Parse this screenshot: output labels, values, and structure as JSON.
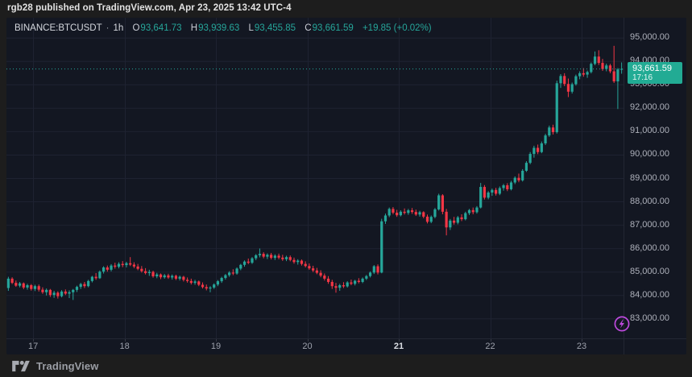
{
  "attribution": {
    "text": "rgb28 published on TradingView.com, Apr 23, 2025 13:42 UTC-4"
  },
  "footer": {
    "brand": "TradingView"
  },
  "legend": {
    "symbol": "BINANCE:BTCUSDT",
    "separator": "·",
    "interval": "1h",
    "open_label": "O",
    "open": "93,641.73",
    "high_label": "H",
    "high": "93,939.63",
    "low_label": "L",
    "low": "93,455.85",
    "close_label": "C",
    "close": "93,661.59",
    "change": "+19.85 (+0.02%)"
  },
  "price_tag": {
    "price": "93,661.59",
    "countdown": "17:16"
  },
  "colors": {
    "background": "#131722",
    "frame": "#1d1d1d",
    "grid": "#1e2231",
    "border": "#232733",
    "tick": "#363a45",
    "axis_text": "#aeb1bb",
    "up": "#26a69a",
    "down": "#f23645",
    "tag_bg": "#22ab94",
    "boost": "#c04ae0"
  },
  "chart_data": {
    "type": "candlestick",
    "title": "BINANCE:BTCUSDT 1h chart",
    "symbol": "BINANCE:BTCUSDT",
    "interval": "1h",
    "current_price": 93661.59,
    "last_candle": {
      "open": 93641.73,
      "high": 93939.63,
      "low": 93455.85,
      "close": 93661.59,
      "change": "+19.85 (+0.02%)"
    },
    "y_range": [
      82150,
      95850
    ],
    "grid": true,
    "y_ticks": {
      "values": [
        95000,
        94000,
        93000,
        92000,
        91000,
        90000,
        89000,
        88000,
        87000,
        86000,
        85000,
        84000,
        83000
      ],
      "labels": [
        "95,000.00",
        "94,000.00",
        "93,000.00",
        "92,000.00",
        "91,000.00",
        "90,000.00",
        "89,000.00",
        "88,000.00",
        "87,000.00",
        "86,000.00",
        "85,000.00",
        "84,000.00",
        "83,000.00"
      ]
    },
    "x_ticks": [
      {
        "label": "17",
        "index": 7,
        "bold": false
      },
      {
        "label": "18",
        "index": 31,
        "bold": false
      },
      {
        "label": "19",
        "index": 55,
        "bold": false
      },
      {
        "label": "20",
        "index": 79,
        "bold": false
      },
      {
        "label": "21",
        "index": 103,
        "bold": true
      },
      {
        "label": "22",
        "index": 127,
        "bold": false
      },
      {
        "label": "23",
        "index": 151,
        "bold": false
      }
    ],
    "ohlc": [
      [
        84300,
        84780,
        84180,
        84700
      ],
      [
        84700,
        84760,
        84470,
        84520
      ],
      [
        84520,
        84620,
        84350,
        84400
      ],
      [
        84400,
        84560,
        84330,
        84500
      ],
      [
        84500,
        84540,
        84250,
        84320
      ],
      [
        84320,
        84480,
        84230,
        84420
      ],
      [
        84420,
        84470,
        84190,
        84260
      ],
      [
        84260,
        84440,
        84170,
        84380
      ],
      [
        84380,
        84450,
        84150,
        84230
      ],
      [
        84230,
        84330,
        84050,
        84120
      ],
      [
        84120,
        84280,
        83980,
        84220
      ],
      [
        84220,
        84260,
        83920,
        84000
      ],
      [
        84000,
        84180,
        83880,
        84100
      ],
      [
        84100,
        84160,
        83850,
        83950
      ],
      [
        83950,
        84210,
        83900,
        84150
      ],
      [
        84150,
        84240,
        84000,
        84060
      ],
      [
        84060,
        84200,
        83870,
        84120
      ],
      [
        84120,
        84260,
        83790,
        84220
      ],
      [
        84220,
        84400,
        84130,
        84350
      ],
      [
        84350,
        84520,
        84260,
        84470
      ],
      [
        84470,
        84560,
        84300,
        84380
      ],
      [
        84380,
        84650,
        84330,
        84600
      ],
      [
        84600,
        84820,
        84540,
        84780
      ],
      [
        84780,
        84940,
        84650,
        84720
      ],
      [
        84720,
        85050,
        84690,
        85000
      ],
      [
        85000,
        85230,
        84920,
        85180
      ],
      [
        85180,
        85260,
        85000,
        85080
      ],
      [
        85080,
        85320,
        85010,
        85260
      ],
      [
        85260,
        85380,
        85130,
        85210
      ],
      [
        85210,
        85400,
        85140,
        85330
      ],
      [
        85330,
        85450,
        85190,
        85280
      ],
      [
        85280,
        85420,
        85180,
        85360
      ],
      [
        85360,
        85620,
        85240,
        85300
      ],
      [
        85300,
        85400,
        85150,
        85220
      ],
      [
        85220,
        85330,
        85060,
        85120
      ],
      [
        85120,
        85240,
        84960,
        85020
      ],
      [
        85020,
        85150,
        84880,
        84940
      ],
      [
        84940,
        85080,
        84820,
        84990
      ],
      [
        84990,
        85040,
        84740,
        84800
      ],
      [
        84800,
        84950,
        84720,
        84880
      ],
      [
        84880,
        84920,
        84680,
        84760
      ],
      [
        84760,
        84900,
        84700,
        84840
      ],
      [
        84840,
        84910,
        84690,
        84750
      ],
      [
        84750,
        84880,
        84660,
        84820
      ],
      [
        84820,
        84870,
        84640,
        84700
      ],
      [
        84700,
        84830,
        84620,
        84780
      ],
      [
        84780,
        84820,
        84580,
        84650
      ],
      [
        84650,
        84750,
        84530,
        84600
      ],
      [
        84600,
        84700,
        84450,
        84520
      ],
      [
        84520,
        84650,
        84440,
        84580
      ],
      [
        84580,
        84620,
        84380,
        84440
      ],
      [
        84440,
        84540,
        84280,
        84340
      ],
      [
        84340,
        84450,
        84200,
        84280
      ],
      [
        84280,
        84380,
        84120,
        84320
      ],
      [
        84320,
        84500,
        84260,
        84450
      ],
      [
        84450,
        84640,
        84380,
        84590
      ],
      [
        84590,
        84780,
        84520,
        84730
      ],
      [
        84730,
        84900,
        84660,
        84850
      ],
      [
        84850,
        85020,
        84780,
        84960
      ],
      [
        84960,
        85100,
        84850,
        84920
      ],
      [
        84920,
        85180,
        84870,
        85130
      ],
      [
        85130,
        85330,
        85060,
        85290
      ],
      [
        85290,
        85480,
        85210,
        85430
      ],
      [
        85430,
        85560,
        85320,
        85380
      ],
      [
        85380,
        85620,
        85330,
        85570
      ],
      [
        85570,
        85750,
        85490,
        85700
      ],
      [
        85700,
        85990,
        85610,
        85760
      ],
      [
        85760,
        85830,
        85570,
        85640
      ],
      [
        85640,
        85780,
        85540,
        85720
      ],
      [
        85720,
        85800,
        85520,
        85590
      ],
      [
        85590,
        85740,
        85500,
        85680
      ],
      [
        85680,
        85770,
        85530,
        85600
      ],
      [
        85600,
        85720,
        85460,
        85530
      ],
      [
        85530,
        85680,
        85450,
        85620
      ],
      [
        85620,
        85690,
        85440,
        85500
      ],
      [
        85500,
        85600,
        85340,
        85410
      ],
      [
        85410,
        85530,
        85300,
        85470
      ],
      [
        85470,
        85520,
        85260,
        85330
      ],
      [
        85330,
        85440,
        85180,
        85240
      ],
      [
        85240,
        85350,
        85080,
        85140
      ],
      [
        85140,
        85250,
        84980,
        85050
      ],
      [
        85050,
        85160,
        84890,
        84950
      ],
      [
        84950,
        85060,
        84760,
        84830
      ],
      [
        84830,
        84920,
        84620,
        84700
      ],
      [
        84700,
        84810,
        84480,
        84560
      ],
      [
        84560,
        84650,
        84260,
        84380
      ],
      [
        84380,
        84520,
        84100,
        84310
      ],
      [
        84310,
        84480,
        84180,
        84420
      ],
      [
        84420,
        84550,
        84300,
        84370
      ],
      [
        84370,
        84590,
        84320,
        84540
      ],
      [
        84540,
        84660,
        84420,
        84480
      ],
      [
        84480,
        84650,
        84410,
        84610
      ],
      [
        84610,
        84720,
        84500,
        84560
      ],
      [
        84560,
        84750,
        84510,
        84700
      ],
      [
        84700,
        84860,
        84640,
        84810
      ],
      [
        84810,
        85010,
        84750,
        84960
      ],
      [
        84960,
        85280,
        84900,
        85230
      ],
      [
        85230,
        85310,
        84880,
        84960
      ],
      [
        84960,
        87260,
        84930,
        87150
      ],
      [
        87150,
        87480,
        87040,
        87400
      ],
      [
        87400,
        87740,
        87330,
        87680
      ],
      [
        87680,
        87760,
        87450,
        87520
      ],
      [
        87520,
        87640,
        87340,
        87410
      ],
      [
        87410,
        87620,
        87360,
        87560
      ],
      [
        87560,
        87700,
        87440,
        87510
      ],
      [
        87510,
        87680,
        87430,
        87620
      ],
      [
        87620,
        87720,
        87470,
        87550
      ],
      [
        87550,
        87650,
        87380,
        87440
      ],
      [
        87440,
        87600,
        87350,
        87540
      ],
      [
        87540,
        87580,
        87280,
        87350
      ],
      [
        87350,
        87440,
        87060,
        87130
      ],
      [
        87130,
        87400,
        87070,
        87340
      ],
      [
        87340,
        87720,
        87280,
        87660
      ],
      [
        87660,
        88330,
        87610,
        88260
      ],
      [
        88260,
        88310,
        87450,
        87560
      ],
      [
        87560,
        87680,
        86550,
        86890
      ],
      [
        86890,
        87250,
        86780,
        87180
      ],
      [
        87180,
        87340,
        87010,
        87090
      ],
      [
        87090,
        87380,
        87020,
        87320
      ],
      [
        87320,
        87450,
        87160,
        87240
      ],
      [
        87240,
        87560,
        87190,
        87500
      ],
      [
        87500,
        87680,
        87420,
        87630
      ],
      [
        87630,
        87740,
        87450,
        87540
      ],
      [
        87540,
        87800,
        87480,
        87740
      ],
      [
        87740,
        88790,
        87700,
        88620
      ],
      [
        88620,
        88700,
        88080,
        88160
      ],
      [
        88160,
        88440,
        88090,
        88380
      ],
      [
        88380,
        88550,
        88240,
        88490
      ],
      [
        88490,
        88580,
        88250,
        88330
      ],
      [
        88330,
        88640,
        88270,
        88570
      ],
      [
        88570,
        88750,
        88460,
        88690
      ],
      [
        88690,
        88780,
        88440,
        88520
      ],
      [
        88520,
        88880,
        88470,
        88810
      ],
      [
        88810,
        89070,
        88740,
        89010
      ],
      [
        89010,
        89190,
        88820,
        88900
      ],
      [
        88900,
        89380,
        88850,
        89310
      ],
      [
        89310,
        89720,
        89260,
        89650
      ],
      [
        89650,
        90110,
        89590,
        90030
      ],
      [
        90030,
        90380,
        89870,
        90290
      ],
      [
        90290,
        90430,
        90020,
        90110
      ],
      [
        90110,
        90560,
        90060,
        90480
      ],
      [
        90480,
        90890,
        90410,
        90820
      ],
      [
        90820,
        91240,
        90760,
        91160
      ],
      [
        91160,
        91280,
        90860,
        90960
      ],
      [
        90960,
        93160,
        90900,
        93050
      ],
      [
        93050,
        93440,
        92850,
        93360
      ],
      [
        93360,
        93480,
        92930,
        93020
      ],
      [
        93020,
        93250,
        92460,
        92690
      ],
      [
        92690,
        93080,
        92610,
        93010
      ],
      [
        93010,
        93420,
        92950,
        93350
      ],
      [
        93350,
        93560,
        93220,
        93480
      ],
      [
        93480,
        93700,
        93330,
        93420
      ],
      [
        93420,
        93590,
        93280,
        93530
      ],
      [
        93530,
        93940,
        93470,
        93880
      ],
      [
        93880,
        94410,
        93820,
        94190
      ],
      [
        94190,
        94460,
        93830,
        93920
      ],
      [
        93920,
        94090,
        93580,
        93660
      ],
      [
        93660,
        93890,
        93560,
        93810
      ],
      [
        93810,
        93880,
        93480,
        93560
      ],
      [
        93560,
        94650,
        93060,
        93130
      ],
      [
        93130,
        93700,
        91950,
        93640
      ],
      [
        93641.73,
        93939.63,
        93455.85,
        93661.59
      ]
    ]
  }
}
